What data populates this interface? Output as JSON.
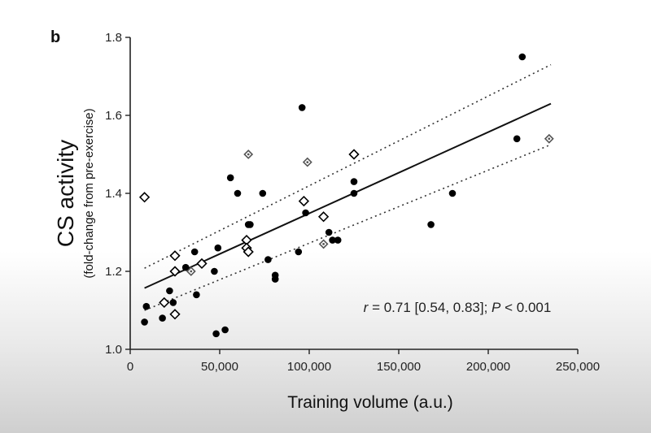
{
  "panel_label": "b",
  "annotation": {
    "r_symbol": "r",
    "r_text": " = 0.71 [0.54, 0.83]; ",
    "p_symbol": "P",
    "p_text": " < 0.001"
  },
  "chart_data": {
    "type": "scatter",
    "title": "",
    "xlabel": "Training volume (a.u.)",
    "ylabel": "CS activity",
    "ylabel_sub": "(fold-change from pre-exercise)",
    "xlim": [
      0,
      250000
    ],
    "ylim": [
      1.0,
      1.8
    ],
    "x_ticks": [
      0,
      50000,
      100000,
      150000,
      200000,
      250000
    ],
    "x_tick_labels": [
      "0",
      "50,000",
      "100,000",
      "150,000",
      "200,000",
      "250,000"
    ],
    "y_ticks": [
      1.0,
      1.2,
      1.4,
      1.6,
      1.8
    ],
    "y_tick_labels": [
      "1.0",
      "1.2",
      "1.4",
      "1.6",
      "1.8"
    ],
    "grid": false,
    "series": [
      {
        "marker": "filled-circle",
        "color": "#000000",
        "points": [
          [
            8000,
            1.07
          ],
          [
            9000,
            1.11
          ],
          [
            18000,
            1.08
          ],
          [
            22000,
            1.15
          ],
          [
            24000,
            1.12
          ],
          [
            31000,
            1.21
          ],
          [
            36000,
            1.25
          ],
          [
            37000,
            1.14
          ],
          [
            47000,
            1.2
          ],
          [
            48000,
            1.04
          ],
          [
            49000,
            1.26
          ],
          [
            53000,
            1.05
          ],
          [
            56000,
            1.44
          ],
          [
            60000,
            1.4
          ],
          [
            66000,
            1.32
          ],
          [
            67000,
            1.32
          ],
          [
            74000,
            1.4
          ],
          [
            77000,
            1.23
          ],
          [
            81000,
            1.19
          ],
          [
            81000,
            1.18
          ],
          [
            94000,
            1.25
          ],
          [
            96000,
            1.62
          ],
          [
            98000,
            1.35
          ],
          [
            111000,
            1.3
          ],
          [
            113000,
            1.28
          ],
          [
            116000,
            1.28
          ],
          [
            125000,
            1.43
          ],
          [
            125000,
            1.4
          ],
          [
            168000,
            1.32
          ],
          [
            180000,
            1.4
          ],
          [
            216000,
            1.54
          ],
          [
            219000,
            1.75
          ]
        ]
      },
      {
        "marker": "open-diamond",
        "color": "#000000",
        "points": [
          [
            8000,
            1.39
          ],
          [
            19000,
            1.12
          ],
          [
            25000,
            1.24
          ],
          [
            25000,
            1.2
          ],
          [
            25000,
            1.09
          ],
          [
            40000,
            1.22
          ],
          [
            65000,
            1.28
          ],
          [
            65000,
            1.26
          ],
          [
            66000,
            1.25
          ],
          [
            97000,
            1.38
          ],
          [
            108000,
            1.34
          ],
          [
            125000,
            1.5
          ]
        ]
      },
      {
        "marker": "dotted-diamond",
        "color": "#555555",
        "points": [
          [
            34000,
            1.2
          ],
          [
            66000,
            1.5
          ],
          [
            99000,
            1.48
          ],
          [
            108000,
            1.27
          ],
          [
            234000,
            1.54
          ]
        ]
      }
    ],
    "regression": {
      "fit": {
        "x": [
          8000,
          235000
        ],
        "y": [
          1.157,
          1.63
        ]
      },
      "ci_upper": {
        "x": [
          8000,
          235000
        ],
        "y": [
          1.208,
          1.73
        ]
      },
      "ci_lower": {
        "x": [
          8000,
          235000
        ],
        "y": [
          1.1,
          1.525
        ]
      }
    }
  }
}
